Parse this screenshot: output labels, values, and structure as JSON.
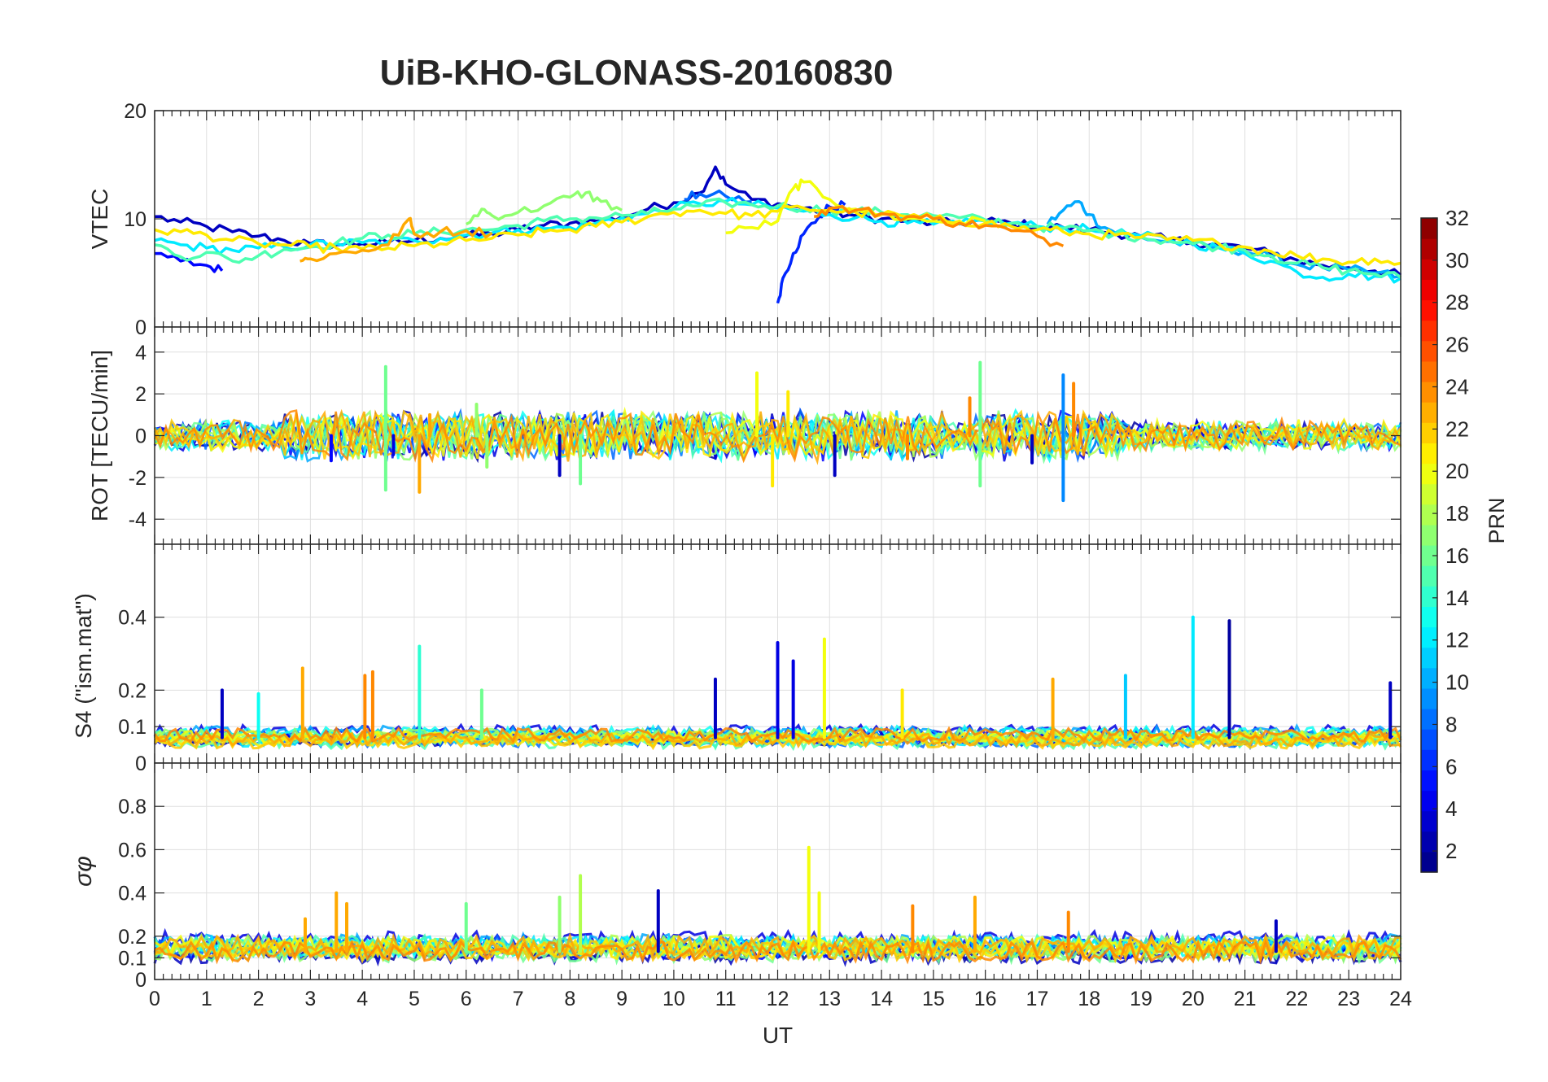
{
  "title": "UiB-KHO-GLONASS-20160830",
  "colorbar": {
    "label": "PRN",
    "range": [
      1,
      32
    ],
    "ticks": [
      "2",
      "4",
      "6",
      "8",
      "10",
      "12",
      "14",
      "16",
      "18",
      "20",
      "22",
      "24",
      "26",
      "28",
      "30",
      "32"
    ],
    "colormap": "jet"
  },
  "chart_data": [
    {
      "type": "line",
      "panel": "vtec",
      "ylabel": "VTEC",
      "ylim": [
        0,
        20
      ],
      "xlim": [
        0,
        24
      ],
      "yticks": [
        "0",
        "10",
        "20"
      ],
      "grid": true,
      "series": [
        {
          "prn": 3,
          "x": [
            0,
            0.5,
            1,
            1.5,
            2,
            2.5,
            3,
            3.5,
            4,
            4.5,
            5,
            5.5,
            6,
            6.5,
            7,
            7.5,
            8,
            8.5,
            9,
            9.5,
            10,
            10.5,
            10.8,
            11,
            11.5,
            12,
            12.5,
            13,
            13.5,
            14,
            14.5,
            15,
            15.5,
            16,
            16.5,
            17,
            17.5,
            18,
            18.5,
            19,
            19.5,
            20,
            20.5,
            21,
            21.5,
            22,
            22.5,
            23,
            23.5,
            24
          ],
          "y": [
            10.2,
            9.7,
            9.3,
            8.8,
            8.4,
            8.0,
            7.7,
            7.6,
            7.7,
            7.8,
            8.0,
            8.2,
            8.4,
            8.6,
            9.0,
            9.4,
            9.6,
            9.8,
            10.2,
            10.9,
            11.5,
            12.4,
            14.8,
            13.2,
            11.8,
            11.4,
            11.0,
            10.6,
            10.3,
            10.0,
            9.8,
            9.6,
            9.6,
            9.8,
            9.6,
            9.3,
            9.2,
            9.0,
            8.7,
            8.4,
            8.1,
            7.8,
            7.6,
            7.3,
            6.8,
            6.2,
            5.7,
            5.5,
            5.2,
            4.8
          ]
        },
        {
          "prn": 5,
          "x": [
            0,
            0.5,
            1,
            1.3
          ],
          "y": [
            6.8,
            6.1,
            5.7,
            5.2
          ]
        },
        {
          "prn": 6,
          "x": [
            12,
            12.1,
            12.3,
            12.5,
            12.8,
            13,
            13.3
          ],
          "y": [
            2.2,
            4.5,
            6.8,
            8.6,
            10.2,
            11.1,
            11.3
          ]
        },
        {
          "prn": 8,
          "x": [
            10.2,
            10.5,
            11,
            11.5
          ],
          "y": [
            11.8,
            12.3,
            12.1,
            11.6
          ]
        },
        {
          "prn": 10,
          "x": [
            17.2,
            17.5,
            17.8,
            18,
            18.3,
            18.6,
            19,
            19.5,
            20,
            20.5,
            21,
            21.5,
            22,
            22.5,
            23,
            23.5,
            24
          ],
          "y": [
            9.5,
            10.8,
            11.6,
            10.4,
            9.2,
            8.6,
            8.3,
            7.9,
            7.6,
            7.4,
            7.0,
            6.5,
            5.8,
            5.5,
            5.3,
            5.0,
            4.7
          ]
        },
        {
          "prn": 12,
          "x": [
            0,
            0.5,
            1,
            1.5,
            2,
            2.5,
            3,
            3.5,
            4,
            4.5,
            5,
            5.5,
            6,
            6.5,
            7,
            7.5,
            8,
            8.5,
            9,
            9.5,
            10,
            10.5,
            11,
            11.5,
            12,
            12.5,
            13,
            13.5,
            14,
            14.5,
            15,
            15.5,
            16,
            16.5,
            17,
            17.5,
            18,
            18.5,
            19,
            19.5,
            20,
            20.5,
            21,
            21.5,
            22,
            22.5,
            23,
            23.5,
            24
          ],
          "y": [
            8.0,
            7.6,
            7.3,
            7.1,
            7.3,
            7.4,
            7.6,
            7.7,
            7.8,
            7.9,
            8.0,
            8.2,
            8.5,
            8.7,
            9.0,
            9.1,
            9.2,
            9.6,
            10.1,
            10.5,
            11.0,
            11.4,
            11.6,
            11.3,
            11.0,
            10.7,
            10.4,
            10.1,
            9.8,
            9.6,
            9.5,
            9.5,
            9.8,
            9.6,
            9.3,
            9.2,
            9.0,
            8.7,
            8.4,
            8.1,
            7.7,
            7.3,
            6.8,
            6.1,
            5.1,
            4.6,
            4.9,
            4.7,
            4.5
          ]
        },
        {
          "prn": 15,
          "x": [
            0,
            0.5,
            1,
            1.5,
            2,
            2.5,
            3,
            3.5,
            4,
            4.5,
            5,
            5.5,
            6,
            6.5,
            7,
            7.5,
            8,
            8.5,
            9,
            9.5,
            10,
            10.5,
            11,
            11.5,
            12,
            12.5,
            13,
            13.5,
            14,
            14.5,
            15,
            15.5,
            16,
            16.5,
            17,
            17.5,
            18,
            18.5,
            19,
            19.5,
            20,
            20.5,
            21,
            21.5,
            22,
            22.5,
            23,
            23.5,
            24
          ],
          "y": [
            7.6,
            6.5,
            6.9,
            6.1,
            6.6,
            7.2,
            7.4,
            7.8,
            8.2,
            8.5,
            8.6,
            8.8,
            9.0,
            9.0,
            9.4,
            9.8,
            10.0,
            10.1,
            10.3,
            10.5,
            10.9,
            11.2,
            11.5,
            11.3,
            11.2,
            11.0,
            10.8,
            10.7,
            10.6,
            10.4,
            10.3,
            10.1,
            9.9,
            9.6,
            9.3,
            9.1,
            8.9,
            8.6,
            8.3,
            8.0,
            7.7,
            7.4,
            7.1,
            6.6,
            5.9,
            5.5,
            5.2,
            4.9,
            4.6
          ]
        },
        {
          "prn": 17,
          "x": [
            6,
            6.3,
            6.5,
            7,
            7.5,
            8,
            8.3,
            8.6,
            9
          ],
          "y": [
            9.5,
            10.9,
            10.3,
            10.6,
            11.2,
            12.0,
            12.4,
            11.6,
            10.8
          ]
        },
        {
          "prn": 20,
          "x": [
            11,
            11.5,
            12,
            12.3,
            12.5,
            13,
            13.5,
            14,
            14.5,
            15,
            15.5,
            16
          ],
          "y": [
            8.7,
            9.2,
            9.8,
            12.8,
            13.4,
            11.8,
            10.9,
            10.4,
            10.0,
            9.8,
            9.7,
            9.8
          ]
        },
        {
          "prn": 21,
          "x": [
            0,
            0.5,
            1,
            1.5,
            2,
            2.5,
            3,
            3.5,
            4,
            4.5,
            5,
            5.5,
            6,
            6.5,
            7,
            7.5,
            8,
            8.5,
            9,
            9.5,
            10,
            10.5,
            11,
            11.5,
            12,
            12.5,
            13,
            13.5,
            14,
            14.5,
            15,
            15.5,
            16,
            16.5,
            17,
            17.5,
            18,
            18.5,
            19,
            19.5,
            20,
            20.5,
            21,
            21.5,
            22,
            22.5,
            23,
            23.5,
            24
          ],
          "y": [
            9.0,
            8.8,
            8.5,
            8.0,
            7.7,
            7.6,
            7.4,
            7.3,
            7.2,
            7.3,
            7.5,
            7.7,
            8.0,
            8.2,
            8.5,
            8.8,
            9.0,
            9.3,
            9.7,
            10.2,
            10.6,
            10.8,
            10.5,
            10.3,
            10.7,
            11.0,
            10.8,
            10.6,
            10.4,
            10.2,
            10.0,
            9.8,
            9.6,
            9.3,
            9.0,
            8.8,
            8.6,
            8.5,
            8.3,
            8.1,
            8.0,
            7.7,
            7.4,
            7.0,
            6.6,
            6.3,
            6.0,
            6.3,
            5.9
          ]
        },
        {
          "prn": 23,
          "x": [
            2.8,
            3,
            3.5,
            4,
            4.5,
            4.9,
            5,
            5.5,
            6,
            6.5
          ],
          "y": [
            6.1,
            6.3,
            6.8,
            7.1,
            7.6,
            10.0,
            8.6,
            8.8,
            8.9,
            8.7
          ]
        },
        {
          "prn": 24,
          "x": [
            12.7,
            13,
            13.5,
            14,
            14.5,
            15,
            15.5,
            16,
            16.5,
            17,
            17.5
          ],
          "y": [
            10.2,
            11.0,
            10.8,
            10.5,
            10.2,
            10.0,
            9.6,
            9.4,
            8.9,
            8.4,
            7.5
          ]
        }
      ]
    },
    {
      "type": "line",
      "panel": "rot",
      "ylabel": "ROT [TECU/min]",
      "ylim": [
        -5.2,
        5.2
      ],
      "xlim": [
        0,
        24
      ],
      "yticks": [
        "-4",
        "-2",
        "0",
        "2",
        "4"
      ],
      "grid": true,
      "spikes": [
        {
          "prn": 5,
          "x": 3.4,
          "y": -1.2
        },
        {
          "prn": 4,
          "x": 4.6,
          "y": -0.9
        },
        {
          "prn": 16,
          "x": 4.45,
          "y": 3.3
        },
        {
          "prn": 16,
          "x": 4.45,
          "y": -2.6
        },
        {
          "prn": 23,
          "x": 5.1,
          "y": -2.7
        },
        {
          "prn": 23,
          "x": 5.3,
          "y": 1.0
        },
        {
          "prn": 17,
          "x": 6.2,
          "y": 1.5
        },
        {
          "prn": 17,
          "x": 6.4,
          "y": -1.5
        },
        {
          "prn": 16,
          "x": 8.2,
          "y": -2.3
        },
        {
          "prn": 3,
          "x": 7.8,
          "y": -1.9
        },
        {
          "prn": 20,
          "x": 11.6,
          "y": 3.0
        },
        {
          "prn": 21,
          "x": 11.9,
          "y": -2.4
        },
        {
          "prn": 21,
          "x": 12.2,
          "y": 2.1
        },
        {
          "prn": 3,
          "x": 13.1,
          "y": -1.9
        },
        {
          "prn": 24,
          "x": 14.5,
          "y": -1.1
        },
        {
          "prn": 24,
          "x": 15.7,
          "y": 1.8
        },
        {
          "prn": 16,
          "x": 15.9,
          "y": 3.5
        },
        {
          "prn": 16,
          "x": 15.9,
          "y": -2.4
        },
        {
          "prn": 9,
          "x": 17.5,
          "y": -3.1
        },
        {
          "prn": 9,
          "x": 17.5,
          "y": 2.9
        },
        {
          "prn": 24,
          "x": 17.7,
          "y": 2.5
        },
        {
          "prn": 3,
          "x": 16.9,
          "y": -1.3
        }
      ]
    },
    {
      "type": "line",
      "panel": "s4",
      "ylabel": "S4 (\"ism.mat\")",
      "ylim": [
        0,
        0.6
      ],
      "xlim": [
        0,
        24
      ],
      "yticks": [
        "0",
        "0.1",
        "0.2",
        "0.4"
      ],
      "grid": true,
      "spikes": [
        {
          "prn": 3,
          "x": 1.3,
          "y": 0.2
        },
        {
          "prn": 13,
          "x": 2.0,
          "y": 0.19
        },
        {
          "prn": 23,
          "x": 2.85,
          "y": 0.26
        },
        {
          "prn": 24,
          "x": 4.05,
          "y": 0.24
        },
        {
          "prn": 24,
          "x": 4.2,
          "y": 0.25
        },
        {
          "prn": 14,
          "x": 5.1,
          "y": 0.32
        },
        {
          "prn": 16,
          "x": 6.3,
          "y": 0.2
        },
        {
          "prn": 3,
          "x": 10.8,
          "y": 0.23
        },
        {
          "prn": 4,
          "x": 12.0,
          "y": 0.33
        },
        {
          "prn": 4,
          "x": 12.3,
          "y": 0.28
        },
        {
          "prn": 20,
          "x": 12.9,
          "y": 0.34
        },
        {
          "prn": 21,
          "x": 14.4,
          "y": 0.2
        },
        {
          "prn": 23,
          "x": 17.3,
          "y": 0.23
        },
        {
          "prn": 11,
          "x": 18.7,
          "y": 0.24
        },
        {
          "prn": 12,
          "x": 20.0,
          "y": 0.4
        },
        {
          "prn": 2,
          "x": 20.7,
          "y": 0.39
        },
        {
          "prn": 3,
          "x": 23.8,
          "y": 0.22
        }
      ]
    },
    {
      "type": "line",
      "panel": "sigma_phi",
      "ylabel": "σφ",
      "ylim": [
        0,
        1
      ],
      "xlim": [
        0,
        24
      ],
      "yticks": [
        "0",
        "0.1",
        "0.2",
        "0.4",
        "0.6",
        "0.8"
      ],
      "xlabel": "UT",
      "xticks": [
        "0",
        "1",
        "2",
        "3",
        "4",
        "5",
        "6",
        "7",
        "8",
        "9",
        "10",
        "11",
        "12",
        "13",
        "14",
        "15",
        "16",
        "17",
        "18",
        "19",
        "20",
        "21",
        "22",
        "23",
        "24"
      ],
      "grid": true,
      "spikes": [
        {
          "prn": 23,
          "x": 2.9,
          "y": 0.28
        },
        {
          "prn": 23,
          "x": 3.5,
          "y": 0.4
        },
        {
          "prn": 23,
          "x": 3.7,
          "y": 0.35
        },
        {
          "prn": 16,
          "x": 6.0,
          "y": 0.35
        },
        {
          "prn": 17,
          "x": 7.8,
          "y": 0.38
        },
        {
          "prn": 18,
          "x": 8.2,
          "y": 0.48
        },
        {
          "prn": 3,
          "x": 9.7,
          "y": 0.41
        },
        {
          "prn": 20,
          "x": 12.6,
          "y": 0.61
        },
        {
          "prn": 20,
          "x": 12.8,
          "y": 0.4
        },
        {
          "prn": 24,
          "x": 14.6,
          "y": 0.34
        },
        {
          "prn": 23,
          "x": 15.8,
          "y": 0.38
        },
        {
          "prn": 24,
          "x": 17.6,
          "y": 0.31
        },
        {
          "prn": 3,
          "x": 21.6,
          "y": 0.27
        }
      ]
    }
  ]
}
